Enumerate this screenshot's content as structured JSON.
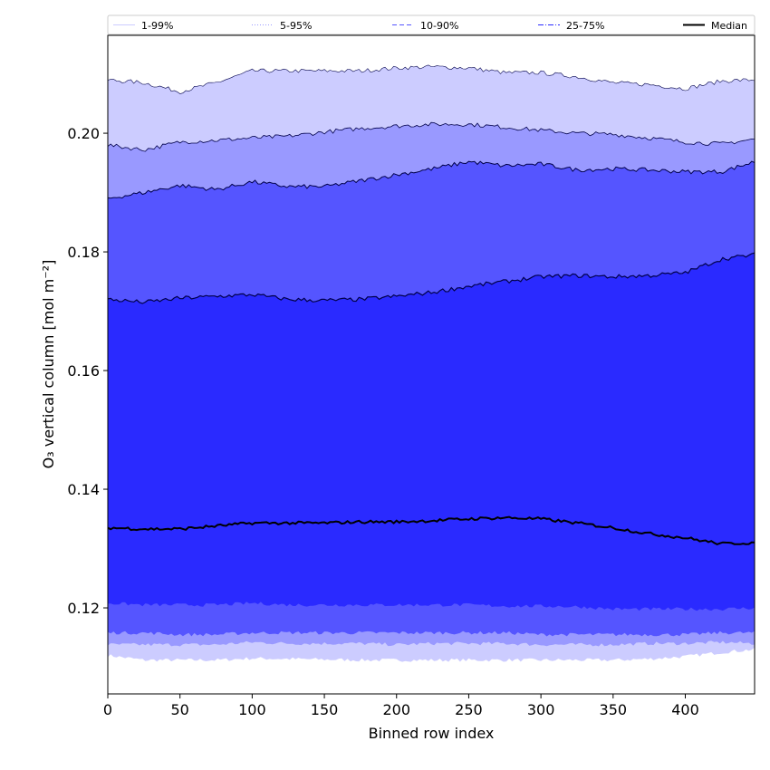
{
  "chart_data": {
    "type": "area",
    "xlabel": "Binned row index",
    "ylabel": "O₃ vertical column [mol m⁻²]",
    "xlim": [
      0,
      448
    ],
    "ylim": [
      0.1055,
      0.2165
    ],
    "x_ticks": [
      0,
      50,
      100,
      150,
      200,
      250,
      300,
      350,
      400
    ],
    "y_ticks": [
      0.12,
      0.14,
      0.16,
      0.18,
      0.2
    ],
    "y_tick_labels": [
      "0.12",
      "0.14",
      "0.16",
      "0.18",
      "0.20"
    ],
    "legend_position": "top, above plot",
    "grid": false,
    "x": [
      0,
      25,
      50,
      75,
      100,
      125,
      150,
      175,
      200,
      225,
      250,
      275,
      300,
      325,
      350,
      375,
      400,
      425,
      448
    ],
    "bands": [
      {
        "name": "1-99%",
        "color": "#ccccff",
        "line_style": "solid",
        "lower": [
          0.112,
          0.1112,
          0.1112,
          0.1112,
          0.1115,
          0.1114,
          0.1113,
          0.1112,
          0.1112,
          0.1112,
          0.1112,
          0.1112,
          0.1112,
          0.1112,
          0.1112,
          0.1114,
          0.1118,
          0.1125,
          0.113
        ],
        "upper": [
          0.209,
          0.2085,
          0.207,
          0.2085,
          0.2105,
          0.2105,
          0.2105,
          0.2105,
          0.211,
          0.2112,
          0.211,
          0.2102,
          0.2102,
          0.2095,
          0.2085,
          0.2082,
          0.2075,
          0.2088,
          0.209
        ]
      },
      {
        "name": "5-95%",
        "color": "#9999ff",
        "line_style": "dotted",
        "lower": [
          0.1138,
          0.1138,
          0.1138,
          0.1138,
          0.1142,
          0.114,
          0.114,
          0.114,
          0.1138,
          0.114,
          0.114,
          0.114,
          0.1138,
          0.1138,
          0.1138,
          0.114,
          0.114,
          0.1142,
          0.114
        ],
        "upper": [
          0.198,
          0.1972,
          0.1985,
          0.1988,
          0.1992,
          0.1995,
          0.2002,
          0.2008,
          0.2012,
          0.2015,
          0.2015,
          0.201,
          0.2005,
          0.2,
          0.1998,
          0.1992,
          0.1985,
          0.1982,
          0.199
        ]
      },
      {
        "name": "10-90%",
        "color": "#5555ff",
        "line_style": "dashed",
        "lower": [
          0.1158,
          0.1158,
          0.1155,
          0.1155,
          0.1158,
          0.1158,
          0.1158,
          0.1158,
          0.1158,
          0.1158,
          0.1158,
          0.1158,
          0.1155,
          0.1155,
          0.1155,
          0.1155,
          0.1155,
          0.1158,
          0.1158
        ],
        "upper": [
          0.189,
          0.19,
          0.1912,
          0.1905,
          0.1918,
          0.191,
          0.191,
          0.192,
          0.193,
          0.194,
          0.1952,
          0.1945,
          0.1948,
          0.1938,
          0.194,
          0.1938,
          0.1935,
          0.1935,
          0.1952
        ]
      },
      {
        "name": "25-75%",
        "color": "#2a2aff",
        "line_style": "dashdot",
        "lower": [
          0.1208,
          0.1205,
          0.1205,
          0.1205,
          0.1208,
          0.1205,
          0.1205,
          0.1205,
          0.1205,
          0.1205,
          0.1205,
          0.1203,
          0.1203,
          0.1202,
          0.1198,
          0.1198,
          0.1198,
          0.1198,
          0.12
        ],
        "upper": [
          0.172,
          0.1715,
          0.1722,
          0.1725,
          0.1728,
          0.172,
          0.1718,
          0.172,
          0.1725,
          0.1732,
          0.1742,
          0.175,
          0.1758,
          0.176,
          0.1758,
          0.176,
          0.1765,
          0.1788,
          0.1795
        ]
      }
    ],
    "median": {
      "name": "Median",
      "color": "#000000",
      "values": [
        0.1335,
        0.1333,
        0.1333,
        0.1338,
        0.1343,
        0.1343,
        0.1343,
        0.1345,
        0.1345,
        0.1347,
        0.135,
        0.1352,
        0.135,
        0.1343,
        0.1335,
        0.1325,
        0.1318,
        0.1308,
        0.131
      ]
    }
  }
}
